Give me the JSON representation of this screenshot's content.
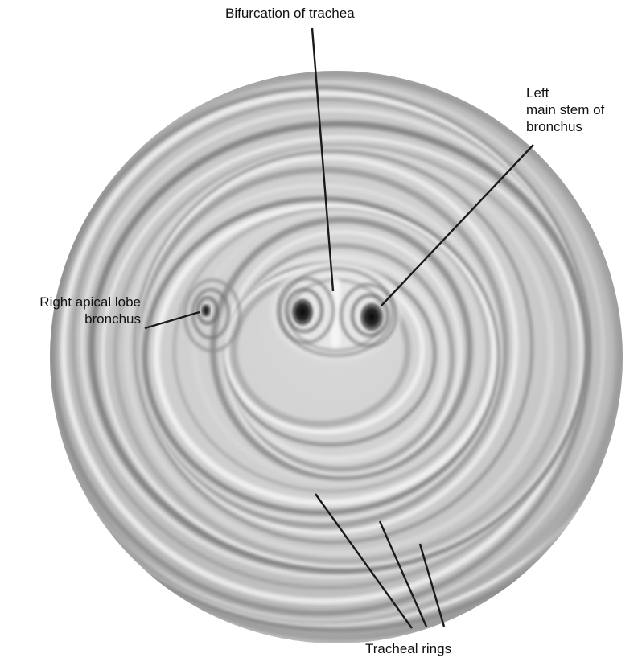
{
  "labels": {
    "bifurcation": "Bifurcation of trachea",
    "left_main_line1": "Left",
    "left_main_line2": "main stem of",
    "left_main_line3": "bronchus",
    "right_apical_line1": "Right apical lobe",
    "right_apical_line2": "bronchus",
    "tracheal_rings": "Tracheal rings"
  },
  "colors": {
    "label_text": "#111111",
    "leader_line": "#1a1a1a",
    "tissue_light": "#ededed",
    "tissue_mid": "#b5b5b5",
    "tissue_dark": "#6e6e6e",
    "lumen": "#141414"
  }
}
